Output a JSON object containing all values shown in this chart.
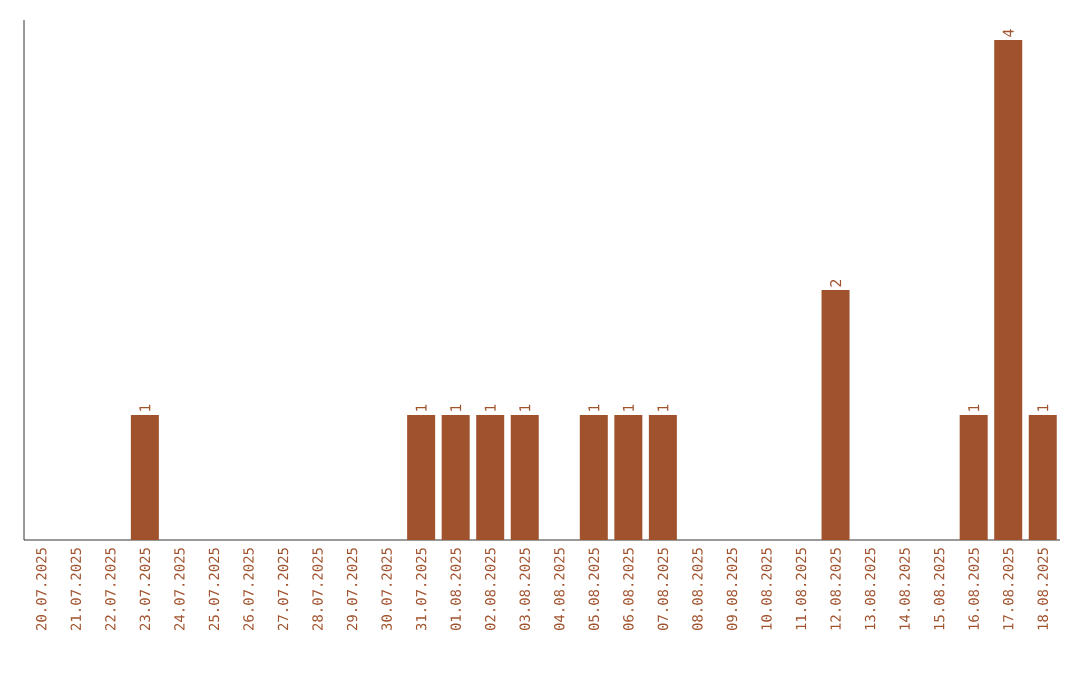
{
  "chart_data": {
    "type": "bar",
    "categories": [
      "20.07.2025",
      "21.07.2025",
      "22.07.2025",
      "23.07.2025",
      "24.07.2025",
      "25.07.2025",
      "26.07.2025",
      "27.07.2025",
      "28.07.2025",
      "29.07.2025",
      "30.07.2025",
      "31.07.2025",
      "01.08.2025",
      "02.08.2025",
      "03.08.2025",
      "04.08.2025",
      "05.08.2025",
      "06.08.2025",
      "07.08.2025",
      "08.08.2025",
      "09.08.2025",
      "10.08.2025",
      "11.08.2025",
      "12.08.2025",
      "13.08.2025",
      "14.08.2025",
      "15.08.2025",
      "16.08.2025",
      "17.08.2025",
      "18.08.2025"
    ],
    "values": [
      0,
      0,
      0,
      1,
      0,
      0,
      0,
      0,
      0,
      0,
      0,
      1,
      1,
      1,
      1,
      0,
      1,
      1,
      1,
      0,
      0,
      0,
      0,
      2,
      0,
      0,
      0,
      1,
      4,
      1
    ],
    "value_labels": [
      null,
      null,
      null,
      "1",
      null,
      null,
      null,
      null,
      null,
      null,
      null,
      "1",
      "1",
      "1",
      "1",
      null,
      "1",
      "1",
      "1",
      null,
      null,
      null,
      null,
      "2",
      null,
      null,
      null,
      "1",
      "4",
      "1"
    ],
    "color": "#a0522d",
    "tick_labels": "x"
  }
}
